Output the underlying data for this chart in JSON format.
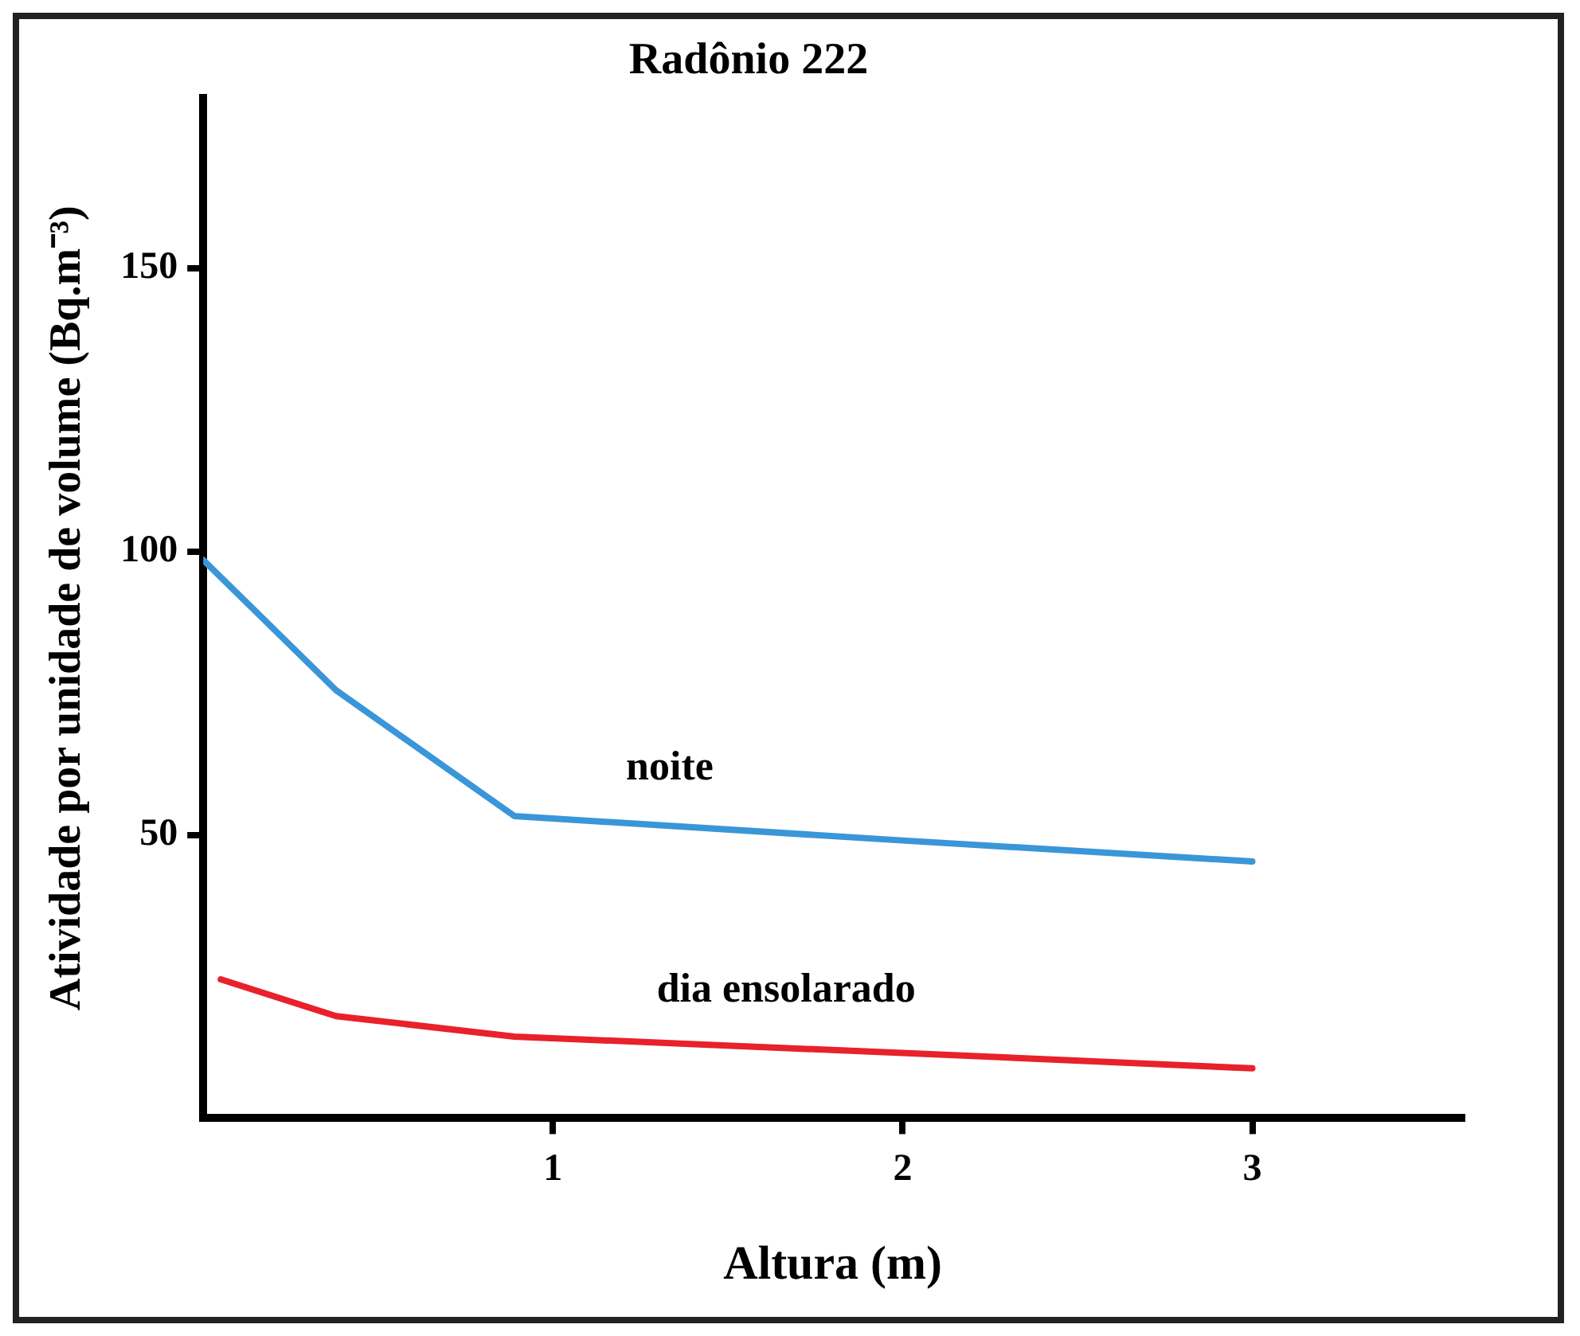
{
  "chart_data": {
    "type": "line",
    "title": "Radônio 222",
    "xlabel": "Altura (m)",
    "ylabel": "Atividade por unidade de volume (Bq.m⁻³)",
    "xlim": [
      0,
      3.6
    ],
    "xticks": [
      1,
      2,
      3
    ],
    "ylim": [
      0,
      180
    ],
    "yticks": [
      50,
      100,
      150
    ],
    "grid": false,
    "legend": false,
    "marker": "none",
    "line_style": "solid",
    "series": [
      {
        "name": "noite",
        "color": "#3a96d8",
        "x": [
          0,
          0.38,
          0.89,
          2,
          3
        ],
        "values": [
          98.5,
          75.5,
          53.3,
          49,
          45.3
        ]
      },
      {
        "name": "dia ensolarado",
        "color": "#e8212a",
        "x": [
          0.05,
          0.38,
          0.89,
          2,
          3
        ],
        "values": [
          24.5,
          18,
          14.4,
          11.5,
          8.8
        ]
      }
    ]
  }
}
